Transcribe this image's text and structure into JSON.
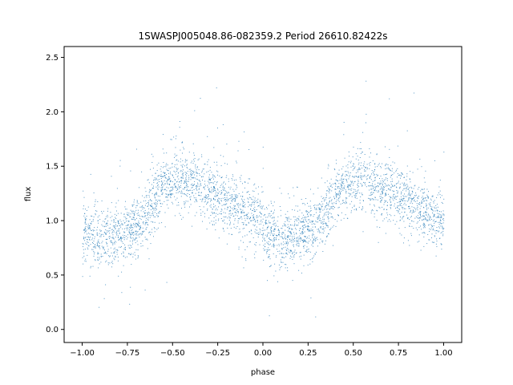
{
  "chart_data": {
    "type": "scatter",
    "title": "1SWASPJ005048.86-082359.2 Period 26610.82422s",
    "xlabel": "phase",
    "ylabel": "flux",
    "xlim": [
      -1.1,
      1.1
    ],
    "ylim": [
      -0.12,
      2.6
    ],
    "x_ticks": [
      -1.0,
      -0.75,
      -0.5,
      -0.25,
      0.0,
      0.25,
      0.5,
      0.75,
      1.0
    ],
    "x_tick_labels": [
      "−1.00",
      "−0.75",
      "−0.50",
      "−0.25",
      "0.00",
      "0.25",
      "0.50",
      "0.75",
      "1.00"
    ],
    "y_ticks": [
      0.0,
      0.5,
      1.0,
      1.5,
      2.0,
      2.5
    ],
    "y_tick_labels": [
      "0.0",
      "0.5",
      "1.0",
      "1.5",
      "2.0",
      "2.5"
    ],
    "grid": false,
    "marker_color": "#1f77b4",
    "phase_range": [
      -1.0,
      1.0
    ],
    "light_curve": {
      "phase": [
        0.0,
        0.1,
        0.2,
        0.3,
        0.35,
        0.4,
        0.45,
        0.5,
        0.55,
        0.6,
        0.7,
        0.8,
        0.9,
        1.0
      ],
      "flux": [
        0.9,
        0.85,
        0.87,
        0.95,
        1.05,
        1.22,
        1.33,
        1.37,
        1.38,
        1.35,
        1.28,
        1.18,
        1.08,
        1.0
      ]
    },
    "scatter_sigma": 0.14
  }
}
